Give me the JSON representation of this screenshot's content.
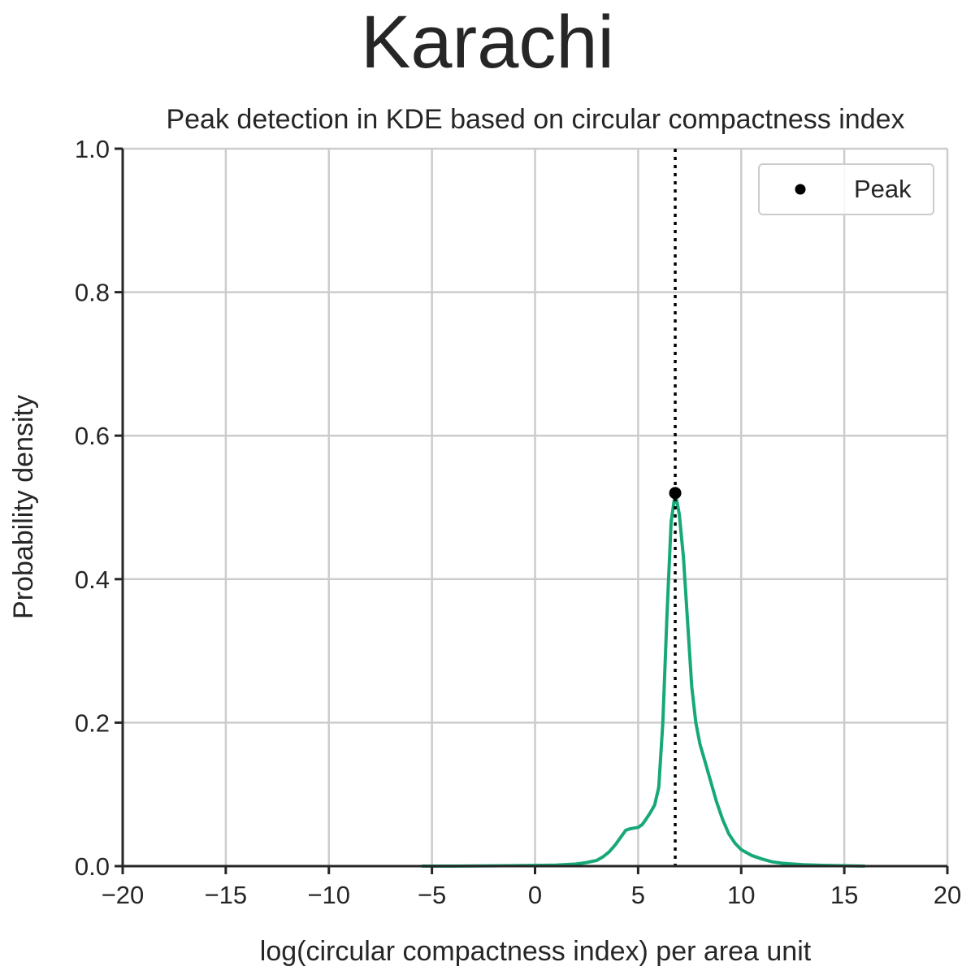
{
  "chart_data": {
    "type": "line",
    "suptitle": "Karachi",
    "title": "Peak detection in KDE based on circular compactness index",
    "xlabel": "log(circular compactness index) per area unit",
    "ylabel": "Probability density",
    "xlim": [
      -20,
      20
    ],
    "ylim": [
      0,
      1.0
    ],
    "xticks": [
      -20,
      -15,
      -10,
      -5,
      0,
      5,
      10,
      15,
      20
    ],
    "xtick_labels": [
      "−20",
      "−15",
      "−10",
      "−5",
      "0",
      "5",
      "10",
      "15",
      "20"
    ],
    "yticks": [
      0.0,
      0.2,
      0.4,
      0.6,
      0.8,
      1.0
    ],
    "ytick_labels": [
      "0.0",
      "0.2",
      "0.4",
      "0.6",
      "0.8",
      "1.0"
    ],
    "grid": true,
    "legend": {
      "placement": "top-right",
      "entries": [
        "Peak"
      ]
    },
    "colors": {
      "kde_line": "#17a87a",
      "peak": "#000000",
      "vline": "#000000",
      "grid": "#cccccc",
      "axis": "#262626"
    },
    "series": [
      {
        "kind": "kde",
        "x": [
          -5.5,
          -4,
          -2,
          0,
          1,
          2,
          2.5,
          3,
          3.3,
          3.6,
          3.9,
          4.2,
          4.4,
          4.6,
          4.8,
          5.0,
          5.2,
          5.4,
          5.6,
          5.8,
          6.0,
          6.2,
          6.4,
          6.6,
          6.8,
          7.0,
          7.2,
          7.4,
          7.6,
          7.8,
          8.0,
          8.2,
          8.5,
          8.8,
          9.1,
          9.4,
          9.7,
          10.0,
          10.5,
          11.0,
          11.5,
          12.0,
          13.0,
          14.0,
          16.0
        ],
        "y": [
          0.0,
          0.0,
          0.0005,
          0.001,
          0.0015,
          0.003,
          0.005,
          0.008,
          0.013,
          0.02,
          0.03,
          0.042,
          0.05,
          0.052,
          0.053,
          0.054,
          0.058,
          0.066,
          0.075,
          0.085,
          0.11,
          0.2,
          0.35,
          0.48,
          0.52,
          0.49,
          0.43,
          0.34,
          0.25,
          0.2,
          0.17,
          0.15,
          0.12,
          0.09,
          0.065,
          0.045,
          0.032,
          0.023,
          0.015,
          0.01,
          0.006,
          0.004,
          0.002,
          0.001,
          0.0
        ]
      }
    ],
    "peak": {
      "x": 6.8,
      "y": 0.52,
      "label": "Peak"
    },
    "vline_x": 6.8
  }
}
